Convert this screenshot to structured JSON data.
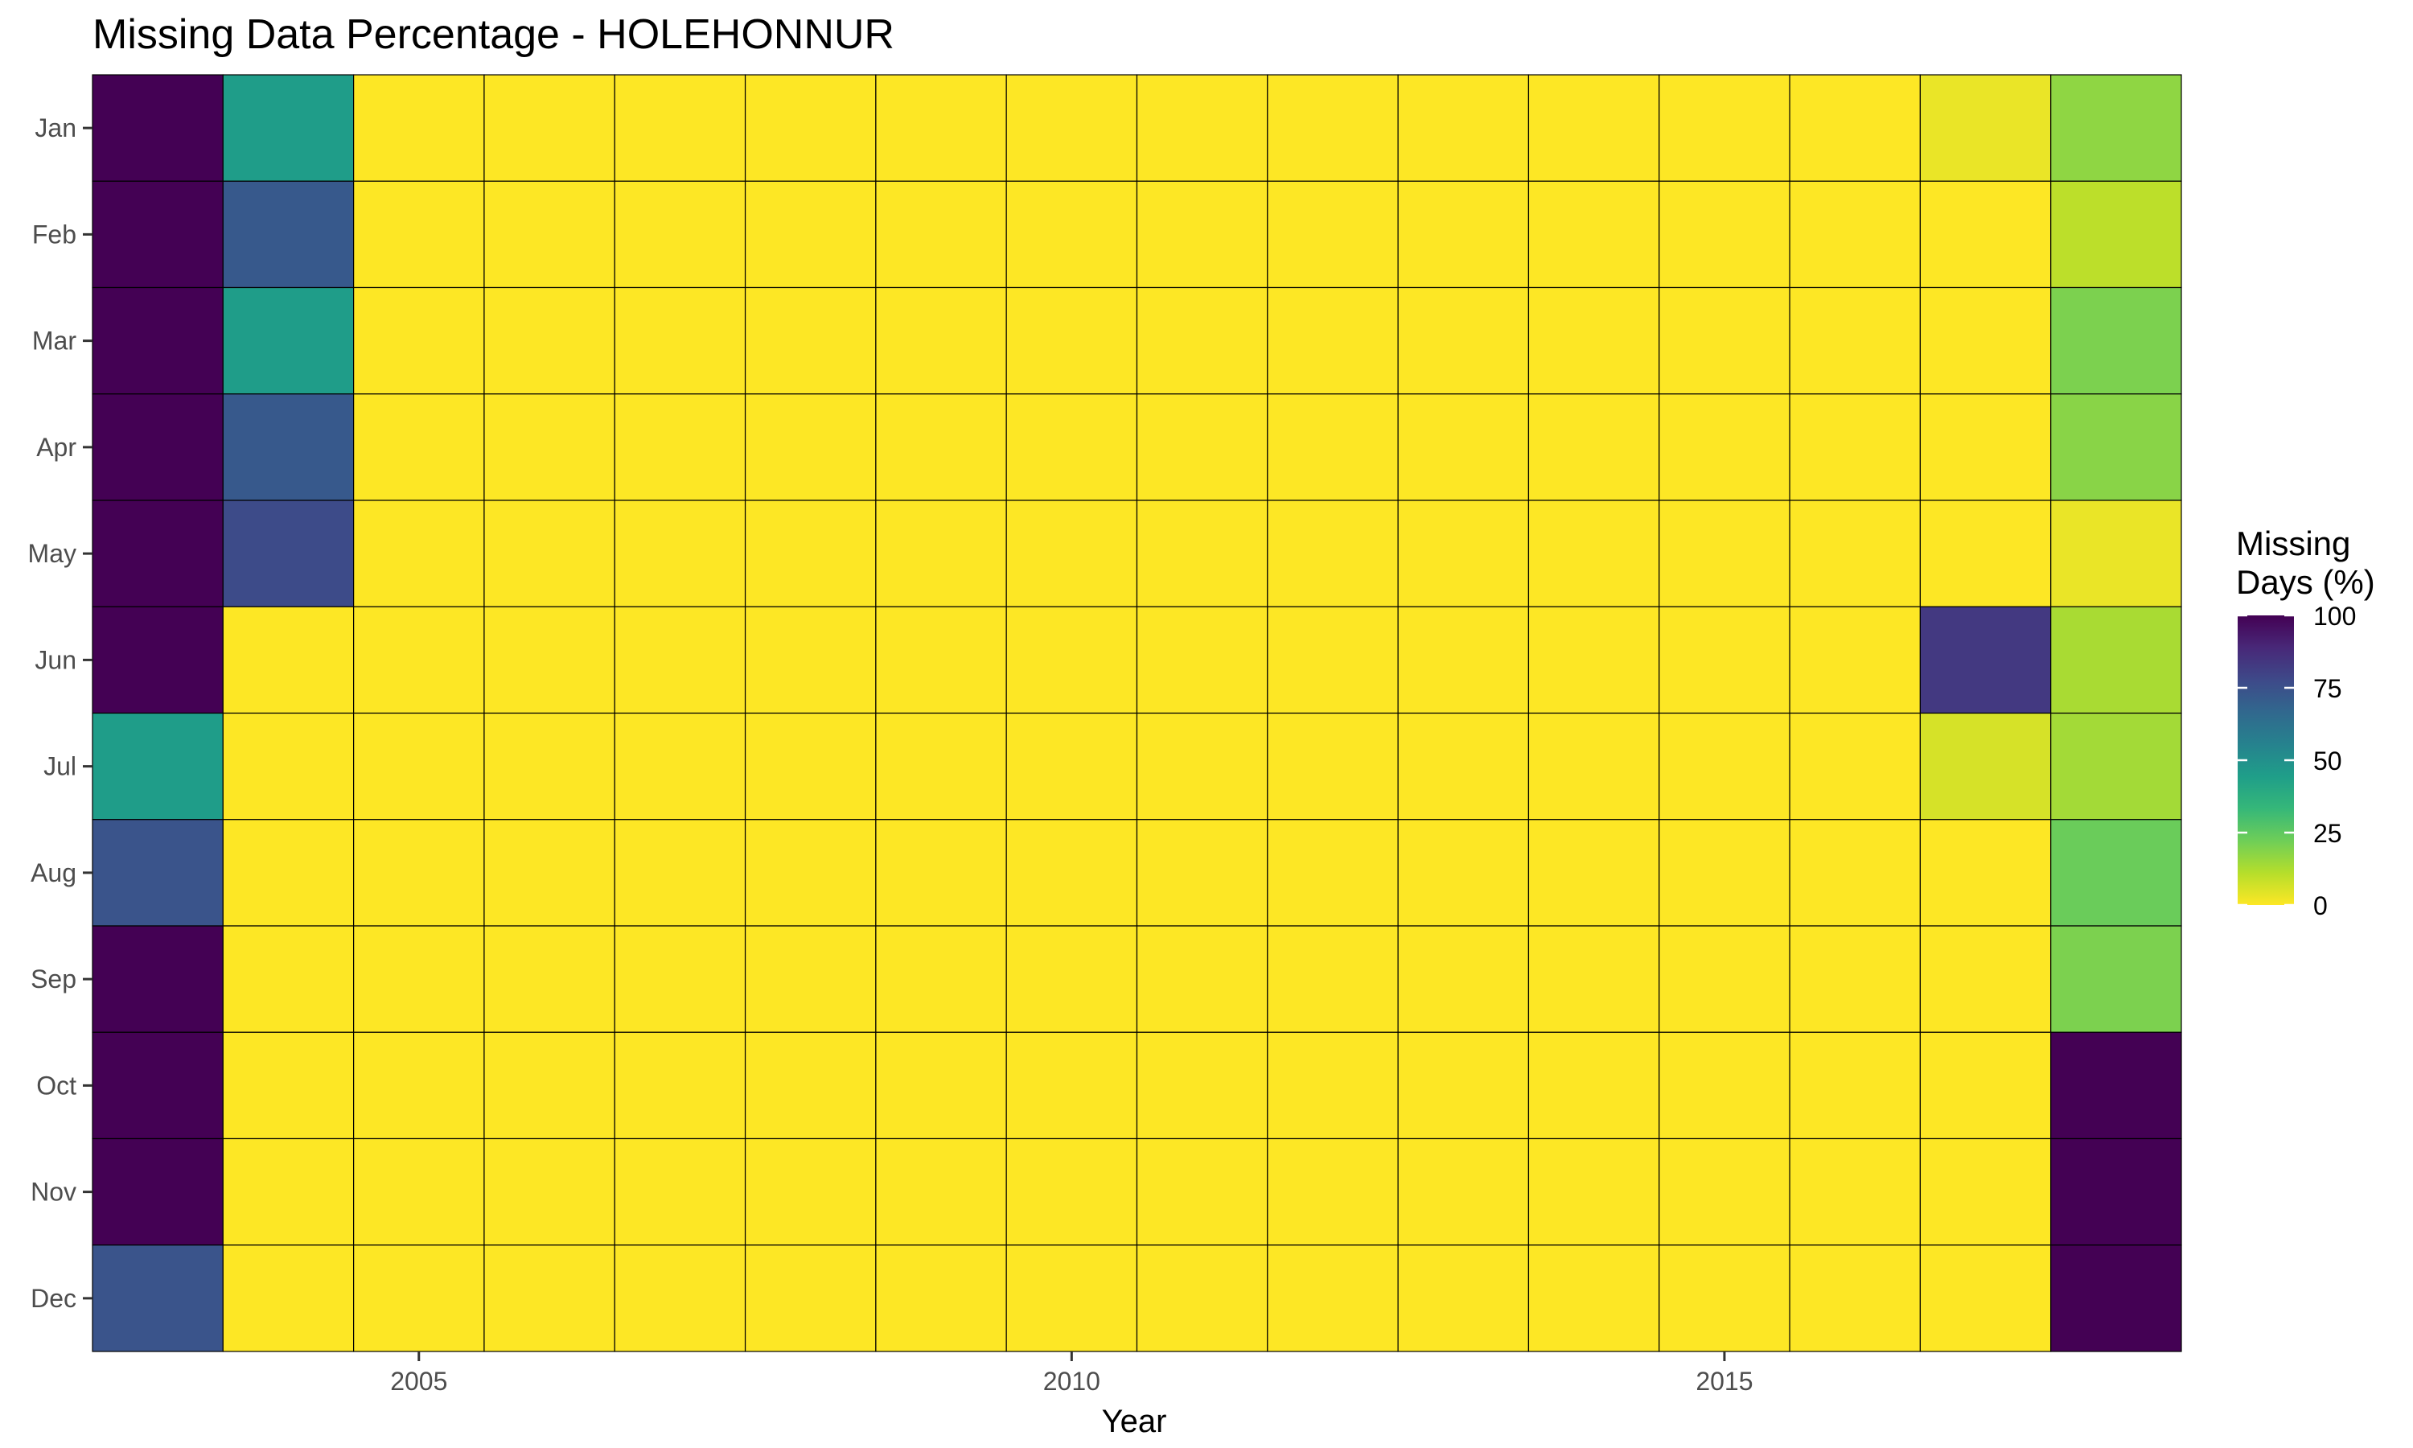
{
  "chart_data": {
    "type": "heatmap",
    "title": "Missing Data Percentage - HOLEHONNUR",
    "xlabel": "Year",
    "ylabel": "",
    "x": [
      2003,
      2004,
      2005,
      2006,
      2007,
      2008,
      2009,
      2010,
      2011,
      2012,
      2013,
      2014,
      2015,
      2016,
      2017,
      2018
    ],
    "y": [
      "Jan",
      "Feb",
      "Mar",
      "Apr",
      "May",
      "Jun",
      "Jul",
      "Aug",
      "Sep",
      "Oct",
      "Nov",
      "Dec"
    ],
    "x_ticks": [
      2005,
      2010,
      2015
    ],
    "x_tick_labels": [
      "2005",
      "2010",
      "2015"
    ],
    "values": [
      [
        100,
        45,
        0,
        0,
        0,
        0,
        0,
        0,
        0,
        0,
        0,
        0,
        0,
        0,
        3,
        17
      ],
      [
        100,
        72,
        0,
        0,
        0,
        0,
        0,
        0,
        0,
        0,
        0,
        0,
        0,
        0,
        0,
        10
      ],
      [
        100,
        45,
        0,
        0,
        0,
        0,
        0,
        0,
        0,
        0,
        0,
        0,
        0,
        0,
        0,
        20
      ],
      [
        100,
        72,
        0,
        0,
        0,
        0,
        0,
        0,
        0,
        0,
        0,
        0,
        0,
        0,
        0,
        18
      ],
      [
        100,
        77,
        0,
        0,
        0,
        0,
        0,
        0,
        0,
        0,
        0,
        0,
        0,
        0,
        0,
        3
      ],
      [
        100,
        0,
        0,
        0,
        0,
        0,
        0,
        0,
        0,
        0,
        0,
        0,
        0,
        0,
        83,
        13
      ],
      [
        45,
        0,
        0,
        0,
        0,
        0,
        0,
        0,
        0,
        0,
        0,
        0,
        0,
        0,
        6,
        14
      ],
      [
        74,
        0,
        0,
        0,
        0,
        0,
        0,
        0,
        0,
        0,
        0,
        0,
        0,
        0,
        0,
        23
      ],
      [
        100,
        0,
        0,
        0,
        0,
        0,
        0,
        0,
        0,
        0,
        0,
        0,
        0,
        0,
        0,
        20
      ],
      [
        100,
        0,
        0,
        0,
        0,
        0,
        0,
        0,
        0,
        0,
        0,
        0,
        0,
        0,
        0,
        100
      ],
      [
        100,
        0,
        0,
        0,
        0,
        0,
        0,
        0,
        0,
        0,
        0,
        0,
        0,
        0,
        0,
        100
      ],
      [
        74,
        0,
        0,
        0,
        0,
        0,
        0,
        0,
        0,
        0,
        0,
        0,
        0,
        0,
        0,
        100
      ]
    ],
    "color_scale": {
      "name": "viridis",
      "direction": "reversed",
      "domain": [
        0,
        100
      ],
      "stops": [
        "#FDE725",
        "#B5DE2B",
        "#6ECE58",
        "#35B779",
        "#1F9E89",
        "#26828E",
        "#31688E",
        "#3E4989",
        "#482878",
        "#440154"
      ]
    },
    "legend": {
      "title_lines": [
        "Missing",
        "Days (%)"
      ],
      "ticks": [
        100,
        75,
        50,
        25,
        0
      ],
      "tick_labels": [
        "100",
        "75",
        "50",
        "25",
        "0"
      ],
      "placement": "right"
    },
    "grid": false,
    "cell_border_color": "#000000"
  }
}
